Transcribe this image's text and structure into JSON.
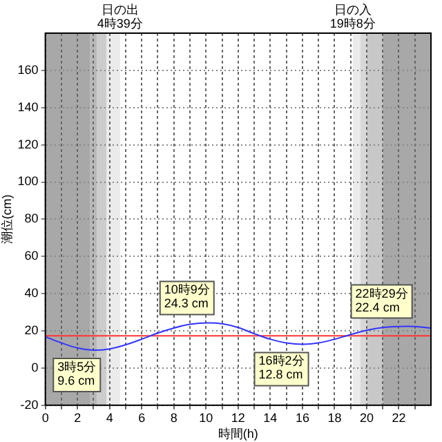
{
  "chart_data": {
    "type": "line",
    "xlabel": "時間(h)",
    "ylabel": "潮位(cm)",
    "series": [
      {
        "color": "#3333ff",
        "x": [
          0,
          1,
          2,
          3.08,
          4,
          5,
          6,
          7,
          8,
          9,
          10.15,
          11,
          12,
          13,
          14,
          15,
          16.03,
          17,
          18,
          19,
          20,
          21,
          22.48,
          23,
          24
        ],
        "values": [
          16.8,
          13.5,
          10.8,
          9.6,
          10.3,
          12.5,
          15.5,
          18.8,
          21.5,
          23.5,
          24.3,
          23.8,
          21.8,
          18.5,
          15.5,
          13.5,
          12.8,
          13.5,
          15.5,
          18,
          20.3,
          21.8,
          22.4,
          22.3,
          21.5
        ]
      }
    ],
    "xlim": [
      0,
      24
    ],
    "xticks": [
      0,
      {
        "value": 1,
        "label": null
      },
      2,
      {
        "value": 3,
        "label": null
      },
      4,
      {
        "value": 5,
        "label": null
      },
      6,
      {
        "value": 7,
        "label": null
      },
      8,
      {
        "value": 9,
        "label": null
      },
      10,
      {
        "value": 11,
        "label": null
      },
      12,
      {
        "value": 13,
        "label": null
      },
      14,
      {
        "value": 15,
        "label": null
      },
      16,
      {
        "value": 17,
        "label": null
      },
      18,
      {
        "value": 19,
        "label": null
      },
      20,
      {
        "value": 21,
        "label": null
      },
      22,
      {
        "value": 23,
        "label": null
      }
    ],
    "ylim": [
      -20,
      180
    ],
    "yticks": [
      -20,
      0,
      20,
      40,
      60,
      80,
      100,
      120,
      140,
      160
    ],
    "grid": true,
    "legend": false,
    "marker": "none",
    "line_style": "solid",
    "ref_lines": [
      {
        "axis": "y",
        "value": 17.3,
        "color": "#ff3333"
      }
    ],
    "bands": [
      {
        "axis": "x",
        "from": 0,
        "to": 2.8,
        "color": "#a8a8a8"
      },
      {
        "axis": "x",
        "from": 2.8,
        "to": 3.2,
        "color": "#b8b8b8"
      },
      {
        "axis": "x",
        "from": 3.2,
        "to": 3.8,
        "color": "#cccccc"
      },
      {
        "axis": "x",
        "from": 3.8,
        "to": 4.65,
        "color": "#ebebeb"
      },
      {
        "axis": "x",
        "from": 19.13,
        "to": 19.6,
        "color": "#ebebeb"
      },
      {
        "axis": "x",
        "from": 19.6,
        "to": 20,
        "color": "#d8d8d8"
      },
      {
        "axis": "x",
        "from": 20,
        "to": 21,
        "color": "#c8c8c8"
      },
      {
        "axis": "x",
        "from": 21,
        "to": 24,
        "color": "#a8a8a8"
      }
    ],
    "annotations": [
      {
        "text": "日の出\n4時39分",
        "x": 4.65,
        "y": 180
      },
      {
        "text": "日の入\n19時8分",
        "x": 19.13,
        "y": 180
      },
      {
        "text": "3時5分\n9.6 cm",
        "x": 3.08,
        "y": 9.6
      },
      {
        "text": "10時9分\n24.3 cm",
        "x": 10.15,
        "y": 24.3
      },
      {
        "text": "16時2分\n12.8 cm",
        "x": 16.03,
        "y": 12.8
      },
      {
        "text": "22時29分\n22.4 cm",
        "x": 22.48,
        "y": 22.4
      }
    ]
  }
}
